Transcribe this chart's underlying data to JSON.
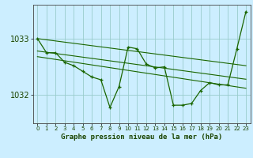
{
  "title": "Graphe pression niveau de la mer (hPa)",
  "bg_color": "#cceeff",
  "grid_color": "#99cccc",
  "line_color": "#1a6600",
  "xlim": [
    -0.5,
    23.5
  ],
  "ylim": [
    1031.5,
    1033.6
  ],
  "yticks": [
    1032,
    1033
  ],
  "xticks": [
    0,
    1,
    2,
    3,
    4,
    5,
    6,
    7,
    8,
    9,
    10,
    11,
    12,
    13,
    14,
    15,
    16,
    17,
    18,
    19,
    20,
    21,
    22,
    23
  ],
  "pressure_data": [
    [
      0,
      1033.0
    ],
    [
      1,
      1032.75
    ],
    [
      2,
      1032.75
    ],
    [
      3,
      1032.58
    ],
    [
      4,
      1032.52
    ],
    [
      5,
      1032.42
    ],
    [
      6,
      1032.32
    ],
    [
      7,
      1032.27
    ],
    [
      8,
      1031.78
    ],
    [
      9,
      1032.15
    ],
    [
      10,
      1032.85
    ],
    [
      11,
      1032.82
    ],
    [
      12,
      1032.55
    ],
    [
      13,
      1032.48
    ],
    [
      14,
      1032.5
    ],
    [
      15,
      1031.82
    ],
    [
      16,
      1031.82
    ],
    [
      17,
      1031.85
    ],
    [
      18,
      1032.08
    ],
    [
      19,
      1032.22
    ],
    [
      20,
      1032.18
    ],
    [
      21,
      1032.18
    ],
    [
      22,
      1032.82
    ],
    [
      23,
      1033.48
    ]
  ],
  "trend_line_1": [
    [
      0,
      1033.0
    ],
    [
      23,
      1032.52
    ]
  ],
  "trend_line_2": [
    [
      0,
      1032.78
    ],
    [
      23,
      1032.28
    ]
  ],
  "trend_line_3": [
    [
      0,
      1032.68
    ],
    [
      23,
      1032.12
    ]
  ],
  "xlabel_fontsize": 6.5,
  "ytick_fontsize": 7,
  "xtick_fontsize": 5
}
